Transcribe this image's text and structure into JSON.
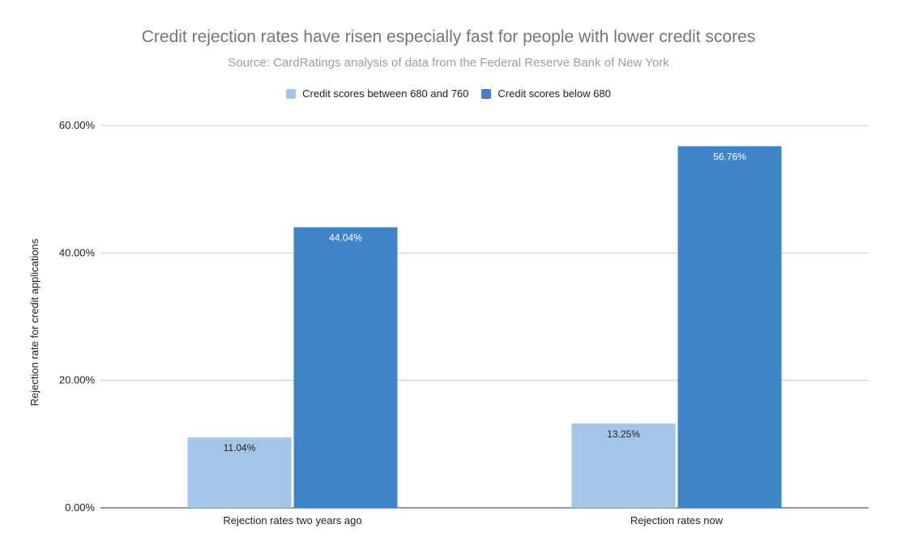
{
  "chart_data": {
    "type": "bar",
    "title": "Credit rejection rates have risen especially fast for people with lower credit scores",
    "subtitle": "Source: CardRatings analysis of data from the Federal Reserve Bank of New York",
    "xlabel": "",
    "ylabel": "Rejection rate for credit applications",
    "categories": [
      "Rejection rates two years ago",
      "Rejection rates now"
    ],
    "series": [
      {
        "name": "Credit scores between 680 and 760",
        "color": "#a3c6e8",
        "label_color": "#222222",
        "values": [
          11.04,
          13.25
        ],
        "labels": [
          "11.04%",
          "13.25%"
        ]
      },
      {
        "name": "Credit scores below 680",
        "color": "#3f84c8",
        "label_color": "#ffffff",
        "values": [
          44.04,
          56.76
        ],
        "labels": [
          "44.04%",
          "56.76%"
        ]
      }
    ],
    "ylim": [
      0,
      60
    ],
    "yticks": [
      0,
      20,
      40,
      60
    ],
    "ytick_labels": [
      "0.00%",
      "20.00%",
      "40.00%",
      "60.00%"
    ],
    "grid": true,
    "legend_position": "top-center"
  }
}
